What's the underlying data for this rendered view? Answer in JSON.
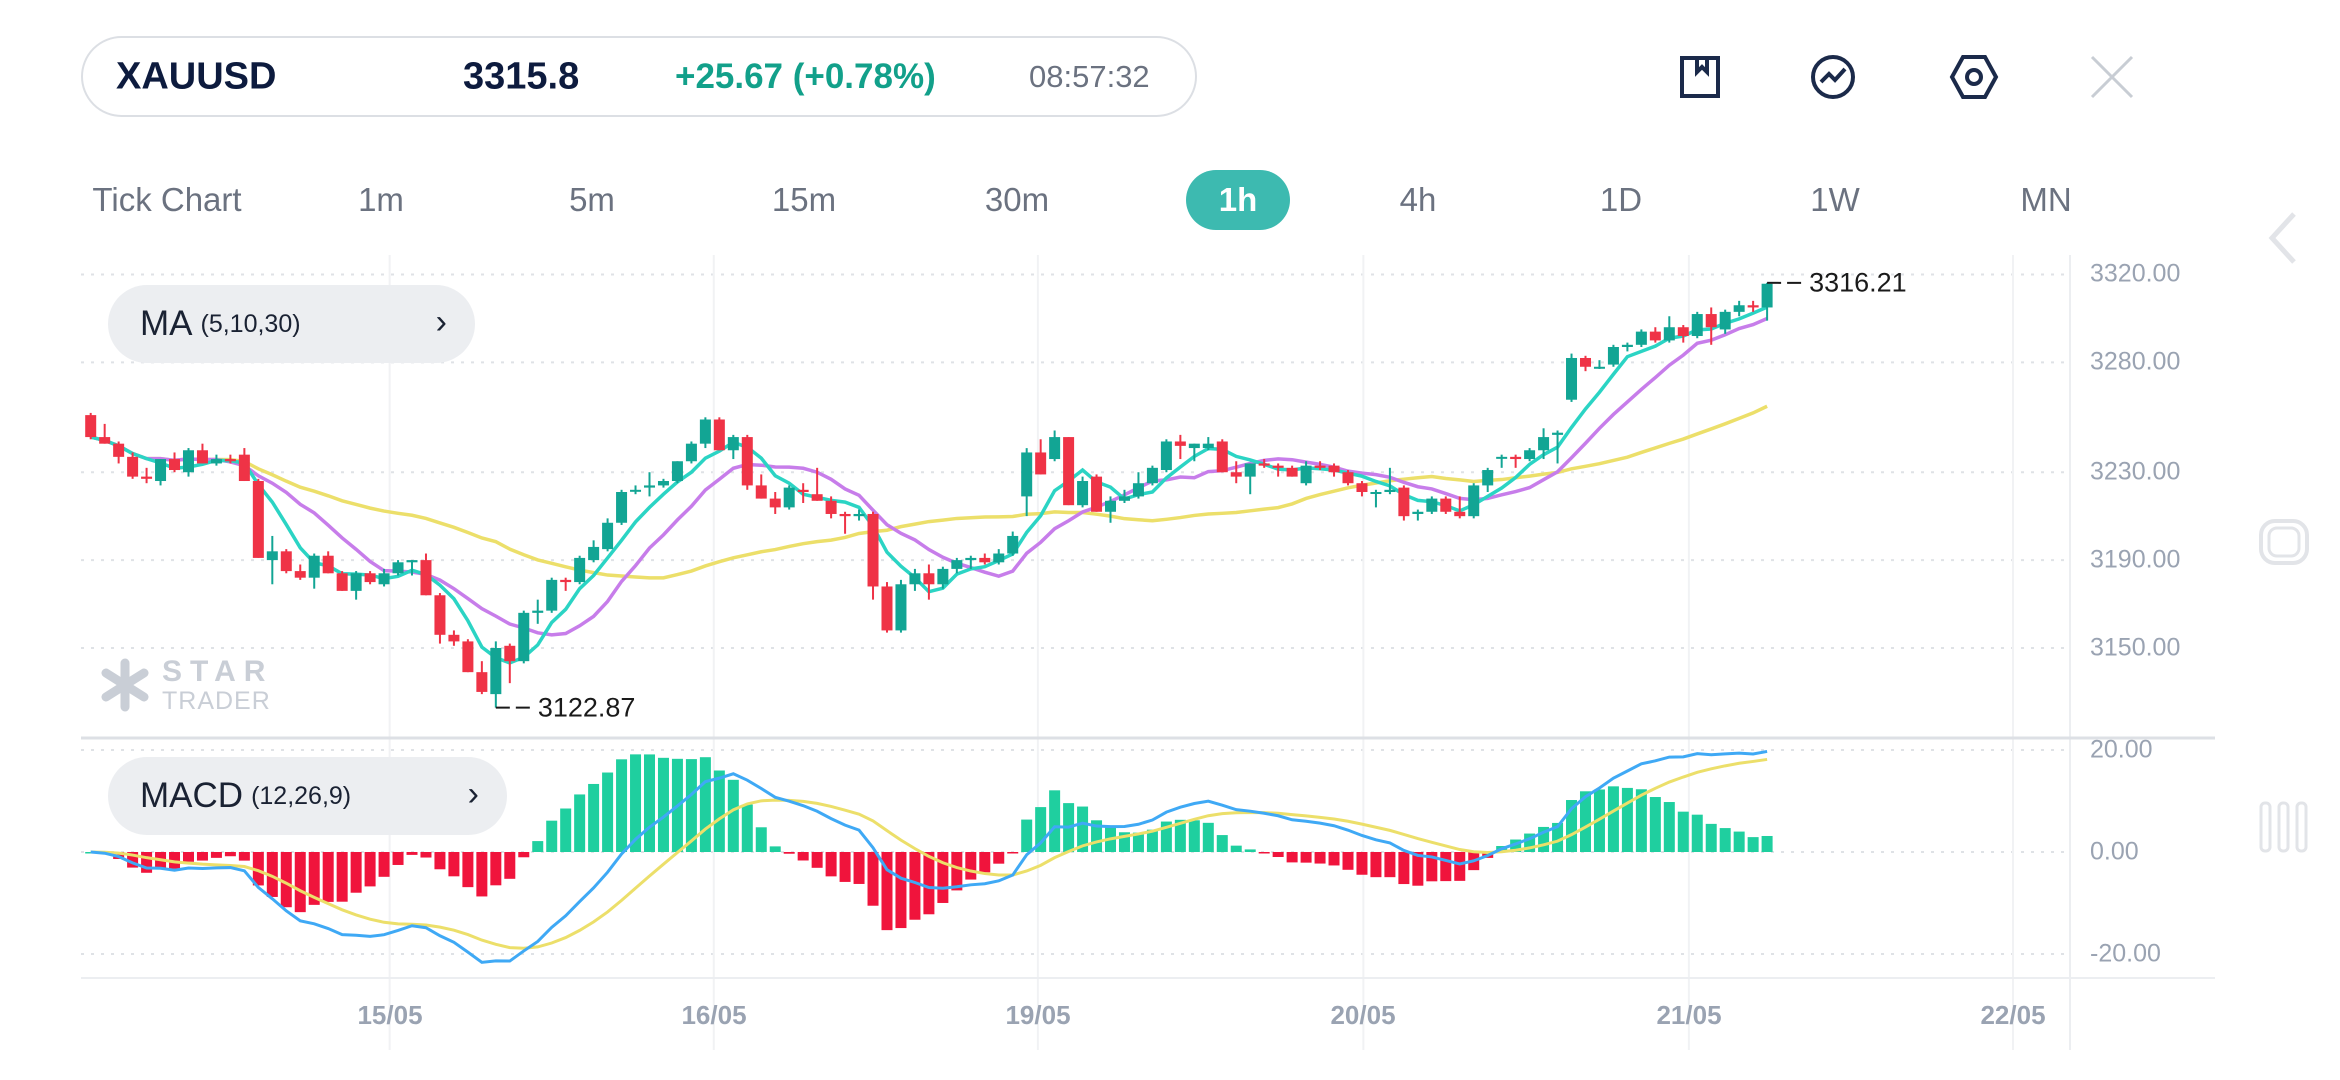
{
  "header": {
    "symbol": "XAUUSD",
    "price": "3315.8",
    "change": "+25.67 (+0.78%)",
    "time": "08:57:32"
  },
  "toolbar_icons": [
    "bookmark-icon",
    "indicator-icon",
    "settings-hexagon-icon",
    "close-icon"
  ],
  "timeframes": [
    {
      "label": "Tick Chart"
    },
    {
      "label": "1m"
    },
    {
      "label": "5m"
    },
    {
      "label": "15m"
    },
    {
      "label": "30m"
    },
    {
      "label": "1h",
      "active": true
    },
    {
      "label": "4h"
    },
    {
      "label": "1D"
    },
    {
      "label": "1W"
    },
    {
      "label": "MN"
    }
  ],
  "indicators": {
    "main": {
      "name": "MA",
      "params": "(5,10,30)"
    },
    "sub": {
      "name": "MACD",
      "params": "(12,26,9)"
    }
  },
  "watermark": {
    "line1": "STAR",
    "line2": "TRADER"
  },
  "side_icons": [
    "chevron-left-icon",
    "rounded-square-icon",
    "three-bars-icon"
  ],
  "colors": {
    "up": "#12a594",
    "down": "#ef3346",
    "ma5": "#2bd4c4",
    "ma10": "#c77dea",
    "ma30": "#ecdf6a",
    "dif": "#3fa9f5",
    "dea": "#ecdf6a",
    "hist_up": "#1fcf9f",
    "hist_down": "#f0143c",
    "accent": "#3dbab0"
  },
  "chart_data": {
    "type": "candlestick",
    "symbol": "XAUUSD",
    "timeframe": "1h",
    "y_ticks": [
      "3320.00",
      "3280.00",
      "3230.00",
      "3190.00",
      "3150.00"
    ],
    "ylim": [
      3113,
      3328
    ],
    "macd_ticks": [
      "20.00",
      "0.00",
      "-20.00"
    ],
    "macd_ylim": [
      -25,
      25
    ],
    "x_ticks": [
      {
        "label": "15/05",
        "index": 21.4
      },
      {
        "label": "16/05",
        "index": 44.6
      },
      {
        "label": "19/05",
        "index": 67.8
      },
      {
        "label": "20/05",
        "index": 91.1
      },
      {
        "label": "21/05",
        "index": 114.4
      },
      {
        "label": "22/05",
        "index": 137.6
      }
    ],
    "ma_periods": [
      5,
      10,
      30
    ],
    "macd_params": [
      12,
      26,
      9
    ],
    "high_label": "3316.21",
    "low_label": "3122.87",
    "candles": [
      [
        3256,
        3257,
        3245,
        3246
      ],
      [
        3246,
        3252,
        3243,
        3243
      ],
      [
        3243,
        3244,
        3234,
        3237
      ],
      [
        3237,
        3239,
        3227,
        3228
      ],
      [
        3228,
        3232,
        3225,
        3227
      ],
      [
        3226,
        3236,
        3224,
        3236
      ],
      [
        3236,
        3239,
        3230,
        3231
      ],
      [
        3230,
        3241,
        3228,
        3240
      ],
      [
        3240,
        3243,
        3234,
        3234
      ],
      [
        3234,
        3238,
        3233,
        3236
      ],
      [
        3236,
        3238,
        3234,
        3235
      ],
      [
        3238,
        3241,
        3226,
        3226
      ],
      [
        3226,
        3227,
        3191,
        3191
      ],
      [
        3190,
        3201,
        3179,
        3194
      ],
      [
        3194,
        3195,
        3184,
        3185
      ],
      [
        3185,
        3188,
        3181,
        3182
      ],
      [
        3182,
        3193,
        3177,
        3192
      ],
      [
        3192,
        3194,
        3184,
        3184
      ],
      [
        3184,
        3185,
        3176,
        3176
      ],
      [
        3176,
        3185,
        3172,
        3184
      ],
      [
        3184,
        3185,
        3179,
        3180
      ],
      [
        3179,
        3186,
        3178,
        3184
      ],
      [
        3184,
        3190,
        3183,
        3189
      ],
      [
        3189,
        3190,
        3183,
        3190
      ],
      [
        3190,
        3193,
        3174,
        3174
      ],
      [
        3174,
        3175,
        3152,
        3156
      ],
      [
        3156,
        3158,
        3151,
        3153
      ],
      [
        3153,
        3154,
        3139,
        3139
      ],
      [
        3139,
        3144,
        3129,
        3130
      ],
      [
        3129,
        3153,
        3122.87,
        3150
      ],
      [
        3151,
        3152,
        3134,
        3144
      ],
      [
        3144,
        3167,
        3143,
        3166
      ],
      [
        3166,
        3172,
        3161,
        3167
      ],
      [
        3167,
        3182,
        3166,
        3181
      ],
      [
        3181,
        3182,
        3176,
        3180
      ],
      [
        3180,
        3192,
        3179,
        3191
      ],
      [
        3190,
        3199,
        3189,
        3196
      ],
      [
        3195,
        3209,
        3194,
        3207
      ],
      [
        3207,
        3222,
        3206,
        3221
      ],
      [
        3222,
        3224,
        3220,
        3222
      ],
      [
        3223,
        3230,
        3219,
        3224
      ],
      [
        3224,
        3227,
        3223,
        3226
      ],
      [
        3226,
        3235,
        3225,
        3235
      ],
      [
        3235,
        3244,
        3234,
        3243
      ],
      [
        3243,
        3255,
        3241,
        3254
      ],
      [
        3254,
        3255,
        3240,
        3240
      ],
      [
        3240,
        3247,
        3236,
        3246
      ],
      [
        3246,
        3247,
        3222,
        3224
      ],
      [
        3224,
        3229,
        3218,
        3218
      ],
      [
        3218,
        3221,
        3211,
        3214
      ],
      [
        3214,
        3224,
        3213,
        3223
      ],
      [
        3222,
        3225,
        3216,
        3221
      ],
      [
        3220,
        3232,
        3217,
        3217
      ],
      [
        3217,
        3219,
        3209,
        3211
      ],
      [
        3211,
        3212,
        3202,
        3210
      ],
      [
        3210,
        3213,
        3208,
        3211
      ],
      [
        3211,
        3212,
        3172,
        3178
      ],
      [
        3178,
        3180,
        3157,
        3158
      ],
      [
        3158,
        3181,
        3157,
        3179
      ],
      [
        3179,
        3186,
        3176,
        3184
      ],
      [
        3184,
        3188,
        3172,
        3179
      ],
      [
        3179,
        3187,
        3177,
        3186
      ],
      [
        3186,
        3191,
        3184,
        3190
      ],
      [
        3190,
        3192,
        3186,
        3191
      ],
      [
        3191,
        3193,
        3188,
        3189
      ],
      [
        3189,
        3195,
        3188,
        3193
      ],
      [
        3193,
        3203,
        3192,
        3201
      ],
      [
        3219,
        3241,
        3210,
        3239
      ],
      [
        3239,
        3245,
        3229,
        3229
      ],
      [
        3236,
        3249,
        3235,
        3246
      ],
      [
        3246,
        3246,
        3215,
        3215
      ],
      [
        3215,
        3228,
        3214,
        3226
      ],
      [
        3228,
        3229,
        3212,
        3212
      ],
      [
        3212,
        3219,
        3207,
        3217
      ],
      [
        3217,
        3222,
        3216,
        3219
      ],
      [
        3219,
        3230,
        3218,
        3225
      ],
      [
        3225,
        3233,
        3224,
        3232
      ],
      [
        3231,
        3245,
        3230,
        3244
      ],
      [
        3244,
        3247,
        3236,
        3242
      ],
      [
        3241,
        3243,
        3235,
        3243
      ],
      [
        3241,
        3246,
        3240,
        3243
      ],
      [
        3244,
        3245,
        3230,
        3230
      ],
      [
        3230,
        3235,
        3225,
        3228
      ],
      [
        3228,
        3234,
        3220,
        3234
      ],
      [
        3234,
        3236,
        3232,
        3233
      ],
      [
        3233,
        3234,
        3228,
        3232
      ],
      [
        3232,
        3233,
        3228,
        3228
      ],
      [
        3225,
        3235,
        3224,
        3233
      ],
      [
        3233,
        3235,
        3231,
        3232
      ],
      [
        3233,
        3234,
        3228,
        3230
      ],
      [
        3230,
        3231,
        3224,
        3225
      ],
      [
        3225,
        3226,
        3219,
        3221
      ],
      [
        3221,
        3222,
        3214,
        3221
      ],
      [
        3221,
        3232,
        3220,
        3222
      ],
      [
        3223,
        3224,
        3208,
        3210
      ],
      [
        3211,
        3213,
        3208,
        3212
      ],
      [
        3212,
        3219,
        3211,
        3218
      ],
      [
        3218,
        3219,
        3211,
        3212
      ],
      [
        3212,
        3219,
        3209,
        3210
      ],
      [
        3210,
        3225,
        3209,
        3224
      ],
      [
        3224,
        3232,
        3221,
        3231
      ],
      [
        3237,
        3238,
        3232,
        3237
      ],
      [
        3237,
        3238,
        3232,
        3236
      ],
      [
        3236,
        3241,
        3235,
        3240
      ],
      [
        3240,
        3250,
        3236,
        3246
      ],
      [
        3247,
        3249,
        3234,
        3248
      ],
      [
        3263,
        3284,
        3262,
        3282
      ],
      [
        3282,
        3283,
        3276,
        3278
      ],
      [
        3278,
        3281,
        3277,
        3278
      ],
      [
        3279,
        3288,
        3278,
        3287
      ],
      [
        3287,
        3289,
        3285,
        3288
      ],
      [
        3288,
        3295,
        3287,
        3294
      ],
      [
        3294,
        3296,
        3289,
        3290
      ],
      [
        3290,
        3301,
        3289,
        3296
      ],
      [
        3296,
        3297,
        3289,
        3292
      ],
      [
        3292,
        3303,
        3291,
        3302
      ],
      [
        3302,
        3305,
        3288,
        3296
      ],
      [
        3295,
        3304,
        3293,
        3303
      ],
      [
        3303,
        3308,
        3301,
        3306
      ],
      [
        3306,
        3308,
        3303,
        3305
      ],
      [
        3305,
        3316.21,
        3299,
        3315.8
      ]
    ]
  }
}
